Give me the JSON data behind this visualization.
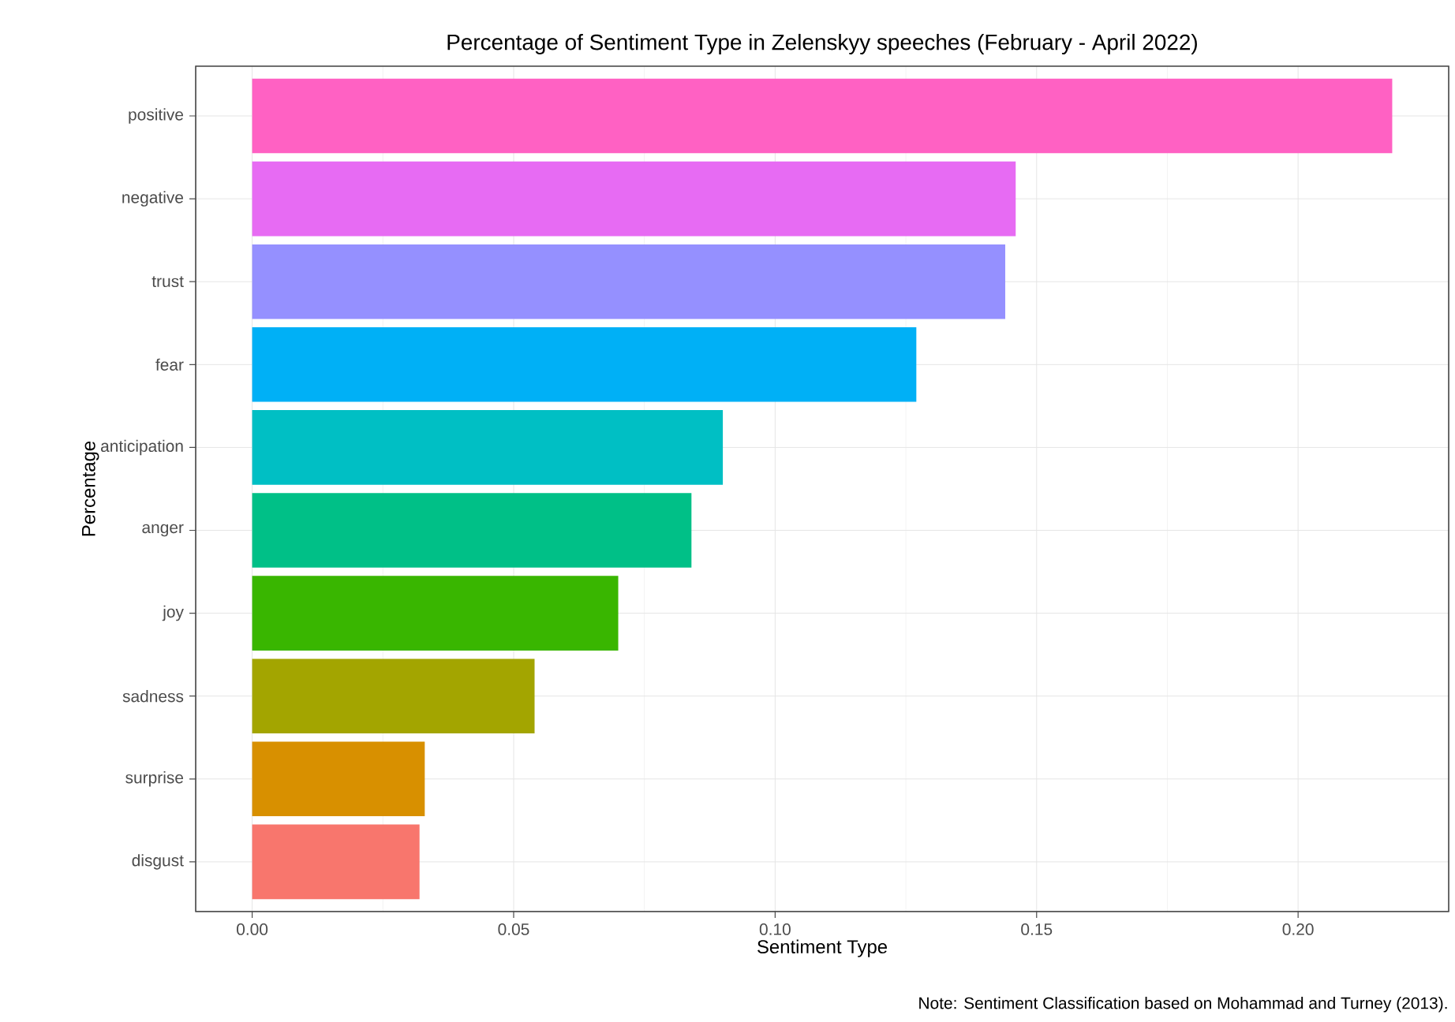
{
  "chart_data": {
    "type": "bar",
    "orientation": "horizontal",
    "title": "Percentage of Sentiment Type in Zelenskyy speeches (February - April 2022)",
    "xlabel": "Sentiment Type",
    "ylabel": "Percentage",
    "categories": [
      "positive",
      "negative",
      "trust",
      "fear",
      "anticipation",
      "anger",
      "joy",
      "sadness",
      "surprise",
      "disgust"
    ],
    "values": [
      0.218,
      0.146,
      0.144,
      0.127,
      0.09,
      0.084,
      0.07,
      0.054,
      0.033,
      0.032
    ],
    "colors": [
      "#ff61c3",
      "#e76bf3",
      "#9590ff",
      "#00b0f6",
      "#00bfc4",
      "#00c087",
      "#39b600",
      "#a3a500",
      "#d89000",
      "#f8766d"
    ],
    "xlim": [
      -0.0108,
      0.2288
    ],
    "xticks": [
      {
        "value": 0,
        "label": "0.00"
      },
      {
        "value": 0.05,
        "label": "0.05"
      },
      {
        "value": 0.1,
        "label": "0.10"
      },
      {
        "value": 0.15,
        "label": "0.15"
      },
      {
        "value": 0.2,
        "label": "0.20"
      }
    ],
    "grid": true,
    "annotations": [
      "Note: Sentiment Classification based on Mohammad and Turney (2013)."
    ]
  }
}
